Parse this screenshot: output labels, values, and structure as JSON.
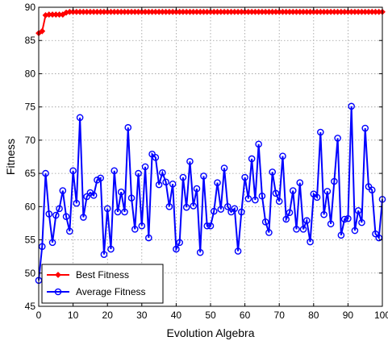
{
  "chart_data": {
    "type": "line",
    "title": "",
    "xlabel": "Evolution Algebra",
    "ylabel": "Fitness",
    "xlim": [
      0,
      100
    ],
    "ylim": [
      45,
      90
    ],
    "xticks": [
      0,
      10,
      20,
      30,
      40,
      50,
      60,
      70,
      80,
      90,
      100
    ],
    "yticks": [
      45,
      50,
      55,
      60,
      65,
      70,
      75,
      80,
      85,
      90
    ],
    "grid": true,
    "legend_position": "bottom-left",
    "series": [
      {
        "name": "Best Fitness",
        "color": "#ff0000",
        "marker": "diamond",
        "x": [
          0,
          1,
          2,
          3,
          4,
          5,
          6,
          7,
          8,
          9,
          10,
          11,
          12,
          13,
          14,
          15,
          16,
          17,
          18,
          19,
          20,
          21,
          22,
          23,
          24,
          25,
          26,
          27,
          28,
          29,
          30,
          31,
          32,
          33,
          34,
          35,
          36,
          37,
          38,
          39,
          40,
          41,
          42,
          43,
          44,
          45,
          46,
          47,
          48,
          49,
          50,
          51,
          52,
          53,
          54,
          55,
          56,
          57,
          58,
          59,
          60,
          61,
          62,
          63,
          64,
          65,
          66,
          67,
          68,
          69,
          70,
          71,
          72,
          73,
          74,
          75,
          76,
          77,
          78,
          79,
          80,
          81,
          82,
          83,
          84,
          85,
          86,
          87,
          88,
          89,
          90,
          91,
          92,
          93,
          94,
          95,
          96,
          97,
          98,
          99,
          100
        ],
        "values": [
          86.1,
          86.4,
          88.8,
          88.9,
          88.9,
          88.9,
          88.9,
          88.9,
          89.2,
          89.3,
          89.3,
          89.3,
          89.3,
          89.3,
          89.3,
          89.3,
          89.3,
          89.3,
          89.3,
          89.3,
          89.3,
          89.3,
          89.3,
          89.3,
          89.3,
          89.3,
          89.3,
          89.3,
          89.3,
          89.3,
          89.3,
          89.3,
          89.3,
          89.3,
          89.3,
          89.3,
          89.3,
          89.3,
          89.3,
          89.3,
          89.3,
          89.3,
          89.3,
          89.3,
          89.3,
          89.3,
          89.3,
          89.3,
          89.3,
          89.3,
          89.3,
          89.3,
          89.3,
          89.3,
          89.3,
          89.3,
          89.3,
          89.3,
          89.3,
          89.3,
          89.3,
          89.3,
          89.3,
          89.3,
          89.3,
          89.3,
          89.3,
          89.3,
          89.3,
          89.3,
          89.3,
          89.3,
          89.3,
          89.3,
          89.3,
          89.3,
          89.3,
          89.3,
          89.3,
          89.3,
          89.3,
          89.3,
          89.3,
          89.3,
          89.3,
          89.3,
          89.3,
          89.3,
          89.3,
          89.3,
          89.3,
          89.3,
          89.3,
          89.3,
          89.3,
          89.3,
          89.3,
          89.3,
          89.3,
          89.3,
          89.3
        ]
      },
      {
        "name": "Average Fitness",
        "color": "#0000ff",
        "marker": "circle",
        "x": [
          0,
          1,
          2,
          3,
          4,
          5,
          6,
          7,
          8,
          9,
          10,
          11,
          12,
          13,
          14,
          15,
          16,
          17,
          18,
          19,
          20,
          21,
          22,
          23,
          24,
          25,
          26,
          27,
          28,
          29,
          30,
          31,
          32,
          33,
          34,
          35,
          36,
          37,
          38,
          39,
          40,
          41,
          42,
          43,
          44,
          45,
          46,
          47,
          48,
          49,
          50,
          51,
          52,
          53,
          54,
          55,
          56,
          57,
          58,
          59,
          60,
          61,
          62,
          63,
          64,
          65,
          66,
          67,
          68,
          69,
          70,
          71,
          72,
          73,
          74,
          75,
          76,
          77,
          78,
          79,
          80,
          81,
          82,
          83,
          84,
          85,
          86,
          87,
          88,
          89,
          90,
          91,
          92,
          93,
          94,
          95,
          96,
          97,
          98,
          99,
          100
        ],
        "values": [
          48.9,
          54.0,
          65.0,
          58.9,
          54.6,
          58.7,
          59.7,
          62.4,
          58.5,
          56.3,
          65.4,
          60.5,
          73.4,
          58.4,
          61.5,
          62.1,
          61.7,
          64.0,
          64.3,
          52.8,
          59.7,
          53.6,
          65.4,
          59.2,
          62.2,
          59.2,
          71.9,
          61.3,
          56.6,
          65.0,
          57.1,
          66.0,
          55.3,
          67.9,
          67.4,
          63.3,
          65.1,
          63.7,
          60.0,
          63.4,
          53.6,
          54.6,
          64.4,
          59.9,
          66.8,
          60.1,
          62.7,
          53.1,
          64.6,
          57.1,
          57.1,
          59.3,
          63.6,
          59.6,
          65.8,
          60.0,
          59.2,
          59.7,
          53.3,
          59.2,
          64.4,
          61.2,
          67.2,
          61.0,
          69.4,
          61.6,
          57.7,
          56.1,
          65.2,
          62.0,
          60.8,
          67.6,
          58.1,
          59.1,
          62.4,
          56.6,
          63.6,
          56.6,
          57.9,
          54.7,
          61.9,
          61.4,
          71.2,
          58.8,
          62.3,
          57.4,
          63.8,
          70.3,
          55.7,
          58.1,
          58.2,
          75.1,
          56.4,
          59.4,
          57.6,
          71.8,
          63.0,
          62.5,
          55.9,
          55.3,
          61.1
        ]
      }
    ]
  }
}
